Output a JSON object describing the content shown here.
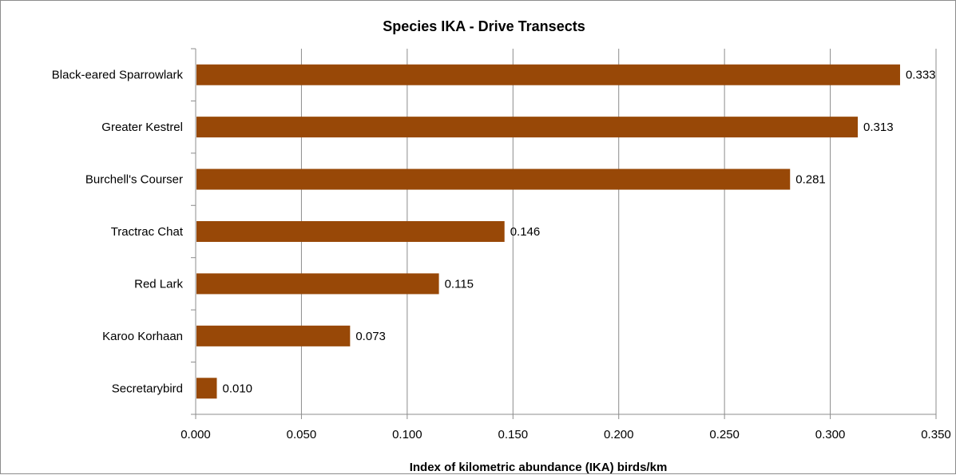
{
  "chart_data": {
    "type": "bar",
    "orientation": "horizontal",
    "title": "Species IKA - Drive Transects",
    "xlabel": "Index of kilometric abundance (IKA) birds/km",
    "ylabel": "",
    "categories": [
      "Black-eared Sparrowlark",
      "Greater Kestrel",
      "Burchell's Courser",
      "Tractrac Chat",
      "Red Lark",
      "Karoo Korhaan",
      "Secretarybird"
    ],
    "values": [
      0.333,
      0.313,
      0.281,
      0.146,
      0.115,
      0.073,
      0.01
    ],
    "value_labels": [
      "0.333",
      "0.313",
      "0.281",
      "0.146",
      "0.115",
      "0.073",
      "0.010"
    ],
    "xlim": [
      0,
      0.35
    ],
    "xticks": [
      "0.000",
      "0.050",
      "0.100",
      "0.150",
      "0.200",
      "0.250",
      "0.300",
      "0.350"
    ],
    "grid": true,
    "legend": "none",
    "bar_color": "#984807"
  }
}
